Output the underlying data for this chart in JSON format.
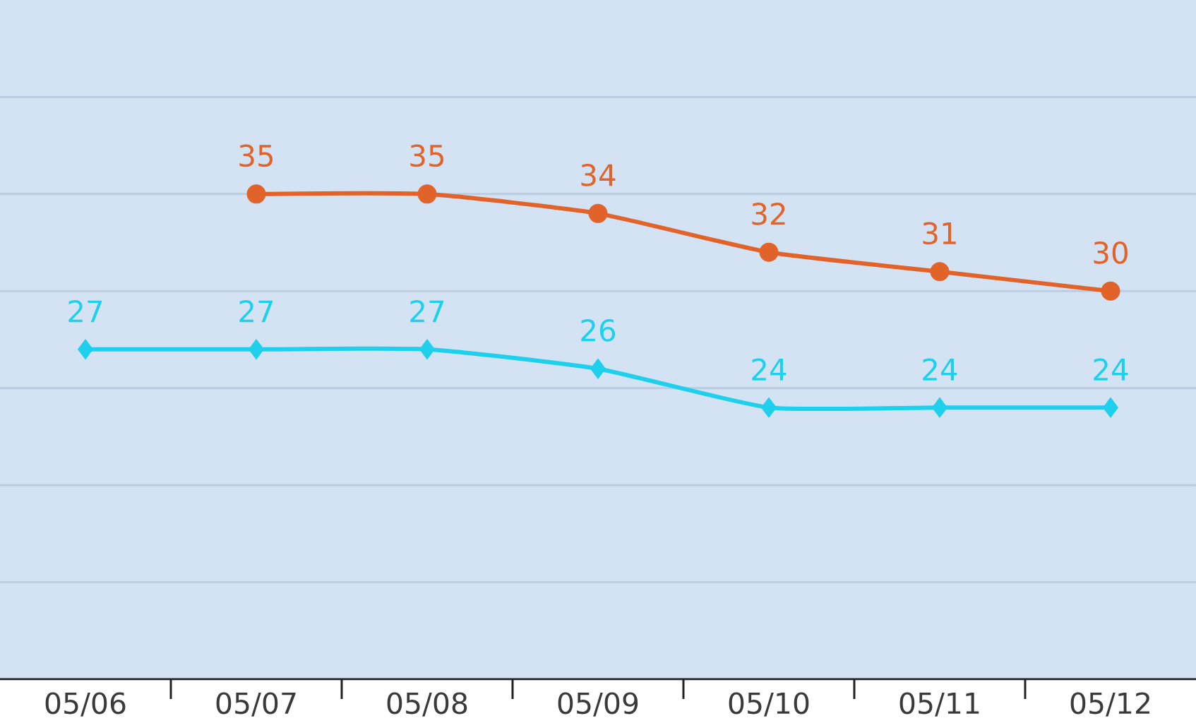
{
  "chart_data": {
    "type": "line",
    "categories": [
      "05/06",
      "05/07",
      "05/08",
      "05/09",
      "05/10",
      "05/11",
      "05/12"
    ],
    "series": [
      {
        "color": "#e2632a",
        "marker": "circle",
        "values": [
          null,
          35,
          35,
          34,
          32,
          31,
          30
        ]
      },
      {
        "color": "#1ed0ec",
        "marker": "diamond",
        "values": [
          27,
          27,
          27,
          26,
          24,
          24,
          24
        ]
      }
    ],
    "ylim": [
      10,
      45
    ],
    "yticks": [
      {
        "value": 15,
        "label": null
      },
      {
        "value": 20,
        "label": null
      },
      {
        "value": 25,
        "label": null
      },
      {
        "value": 30,
        "label": null
      },
      {
        "value": 35,
        "label": null
      },
      {
        "value": 40,
        "label": null
      }
    ],
    "grid": "y",
    "tick_labels": "x",
    "data_labels": true
  }
}
